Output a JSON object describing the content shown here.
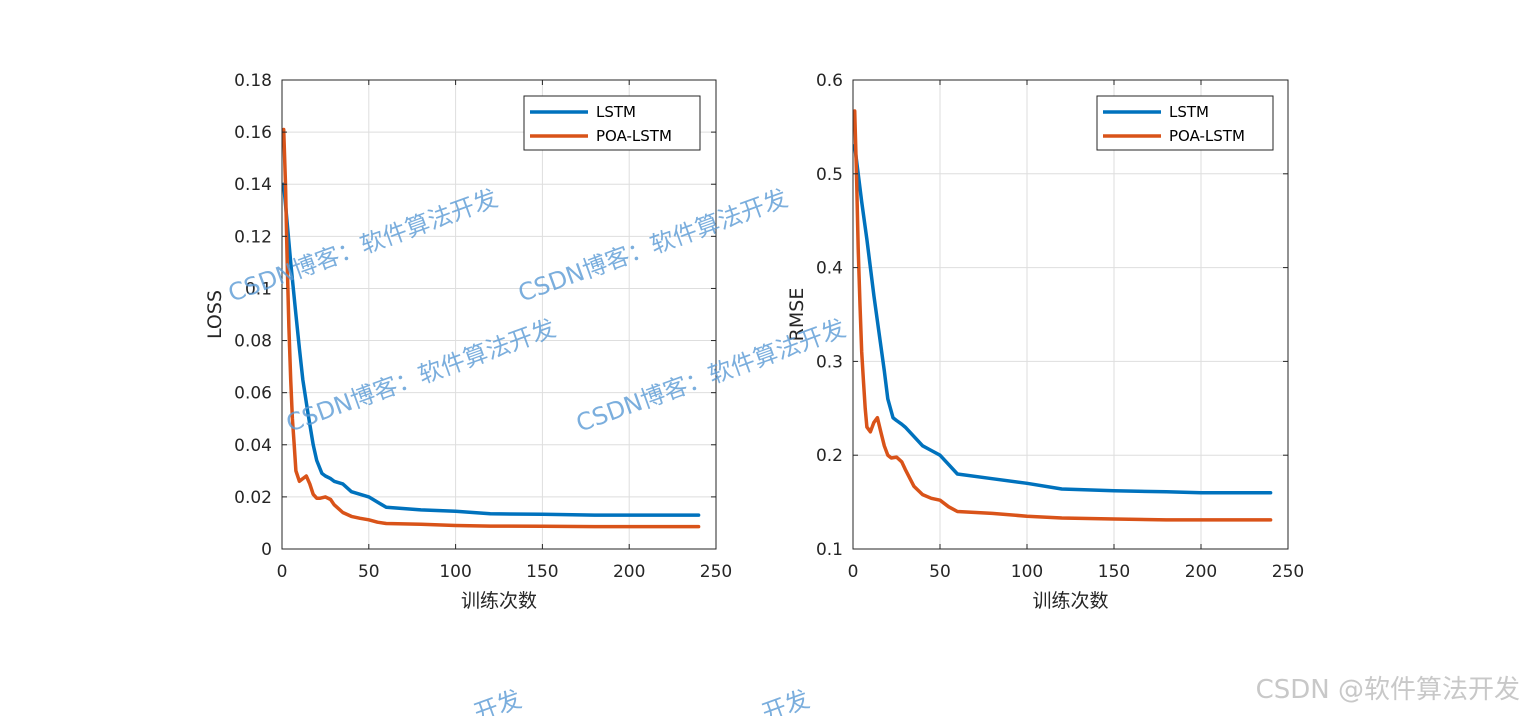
{
  "chart_data": [
    {
      "type": "line",
      "xlabel": "训练次数",
      "ylabel": "LOSS",
      "xlim": [
        0,
        250
      ],
      "ylim": [
        0,
        0.18
      ],
      "xticks": [
        0,
        50,
        100,
        150,
        200,
        250
      ],
      "yticks": [
        0,
        0.02,
        0.04,
        0.06,
        0.08,
        0.1,
        0.12,
        0.14,
        0.16,
        0.18
      ],
      "ytick_labels": [
        "0",
        "0.02",
        "0.04",
        "0.06",
        "0.08",
        "0.1",
        "0.12",
        "0.14",
        "0.16",
        "0.18"
      ],
      "grid": true,
      "legend_position": "top-right",
      "series": [
        {
          "name": "LSTM",
          "color": "#0072bd",
          "x": [
            1,
            3,
            5,
            8,
            10,
            12,
            15,
            18,
            20,
            23,
            25,
            28,
            30,
            35,
            40,
            45,
            50,
            55,
            60,
            80,
            100,
            120,
            150,
            180,
            200,
            220,
            240
          ],
          "y": [
            0.14,
            0.125,
            0.11,
            0.09,
            0.077,
            0.065,
            0.052,
            0.04,
            0.034,
            0.029,
            0.028,
            0.027,
            0.026,
            0.025,
            0.022,
            0.021,
            0.02,
            0.018,
            0.016,
            0.015,
            0.0145,
            0.0135,
            0.0133,
            0.013,
            0.013,
            0.013,
            0.013
          ]
        },
        {
          "name": "POA-LSTM",
          "color": "#d95319",
          "x": [
            1,
            2,
            3,
            4,
            5,
            6,
            7,
            8,
            10,
            12,
            14,
            16,
            18,
            20,
            22,
            25,
            28,
            30,
            35,
            40,
            45,
            50,
            55,
            60,
            80,
            100,
            120,
            150,
            180,
            200,
            220,
            240
          ],
          "y": [
            0.161,
            0.14,
            0.11,
            0.085,
            0.065,
            0.05,
            0.04,
            0.03,
            0.026,
            0.027,
            0.028,
            0.025,
            0.021,
            0.0195,
            0.0195,
            0.02,
            0.019,
            0.017,
            0.014,
            0.0125,
            0.0118,
            0.0112,
            0.0103,
            0.0098,
            0.0095,
            0.009,
            0.0088,
            0.0087,
            0.0086,
            0.0086,
            0.0086,
            0.0086
          ]
        }
      ]
    },
    {
      "type": "line",
      "xlabel": "训练次数",
      "ylabel": "RMSE",
      "xlim": [
        0,
        250
      ],
      "ylim": [
        0.1,
        0.6
      ],
      "xticks": [
        0,
        50,
        100,
        150,
        200,
        250
      ],
      "yticks": [
        0.1,
        0.2,
        0.3,
        0.4,
        0.5,
        0.6
      ],
      "ytick_labels": [
        "0.1",
        "0.2",
        "0.3",
        "0.4",
        "0.5",
        "0.6"
      ],
      "grid": true,
      "legend_position": "top-right",
      "series": [
        {
          "name": "LSTM",
          "color": "#0072bd",
          "x": [
            1,
            3,
            5,
            8,
            10,
            12,
            15,
            18,
            20,
            23,
            25,
            28,
            30,
            35,
            40,
            45,
            50,
            55,
            60,
            80,
            100,
            120,
            150,
            180,
            200,
            220,
            240
          ],
          "y": [
            0.53,
            0.5,
            0.47,
            0.43,
            0.4,
            0.37,
            0.33,
            0.29,
            0.26,
            0.24,
            0.237,
            0.233,
            0.23,
            0.22,
            0.21,
            0.205,
            0.2,
            0.19,
            0.18,
            0.175,
            0.17,
            0.164,
            0.162,
            0.161,
            0.16,
            0.16,
            0.16
          ]
        },
        {
          "name": "POA-LSTM",
          "color": "#d95319",
          "x": [
            1,
            2,
            3,
            4,
            5,
            6,
            7,
            8,
            10,
            12,
            14,
            16,
            18,
            20,
            22,
            25,
            28,
            30,
            35,
            40,
            45,
            50,
            55,
            60,
            80,
            100,
            120,
            150,
            180,
            200,
            220,
            240
          ],
          "y": [
            0.567,
            0.5,
            0.42,
            0.36,
            0.31,
            0.28,
            0.25,
            0.23,
            0.225,
            0.235,
            0.24,
            0.225,
            0.21,
            0.2,
            0.197,
            0.198,
            0.193,
            0.185,
            0.167,
            0.158,
            0.154,
            0.152,
            0.145,
            0.14,
            0.138,
            0.135,
            0.133,
            0.132,
            0.131,
            0.131,
            0.131,
            0.131
          ]
        }
      ]
    }
  ],
  "watermarks": [
    "CSDN博客：软件算法开发",
    "CSDN博客：软件算法开发",
    "CSDN博客：软件算法开发",
    "CSDN博客：软件算法开发",
    "开发",
    "开发"
  ],
  "credit": "CSDN @软件算法开发"
}
